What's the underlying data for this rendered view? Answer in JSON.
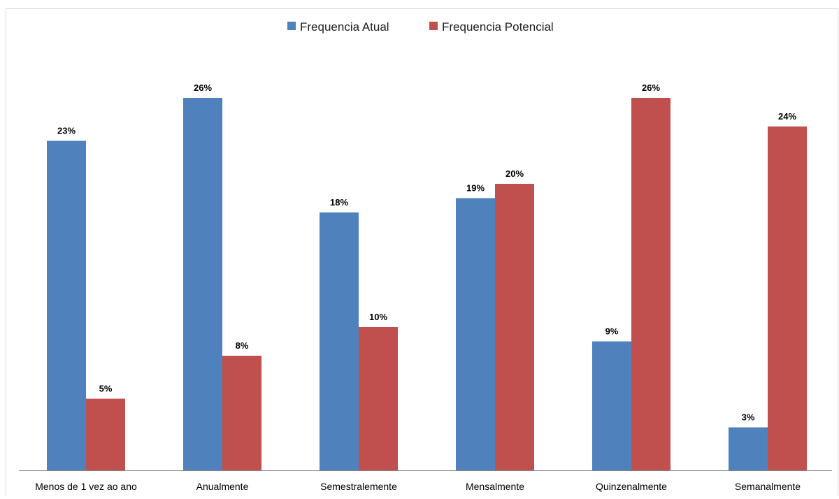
{
  "chart_data": {
    "type": "bar",
    "categories": [
      "Menos de 1 vez ao ano",
      "Anualmente",
      "Semestralemente",
      "Mensalmente",
      "Quinzenalmente",
      "Semanalmente"
    ],
    "series": [
      {
        "name": "Frequencia Atual",
        "color": "#4f81bd",
        "values": [
          23,
          26,
          18,
          19,
          9,
          3
        ],
        "labels": [
          "23%",
          "26%",
          "18%",
          "19%",
          "9%",
          "3%"
        ]
      },
      {
        "name": "Frequencia Potencial",
        "color": "#c0504d",
        "values": [
          5,
          8,
          10,
          20,
          26,
          24
        ],
        "labels": [
          "5%",
          "8%",
          "10%",
          "20%",
          "26%",
          "24%"
        ]
      }
    ],
    "value_format": "percent",
    "ylim": [
      0,
      30
    ],
    "grid": false,
    "y_axis_visible": false,
    "legend_position": "top-center"
  }
}
